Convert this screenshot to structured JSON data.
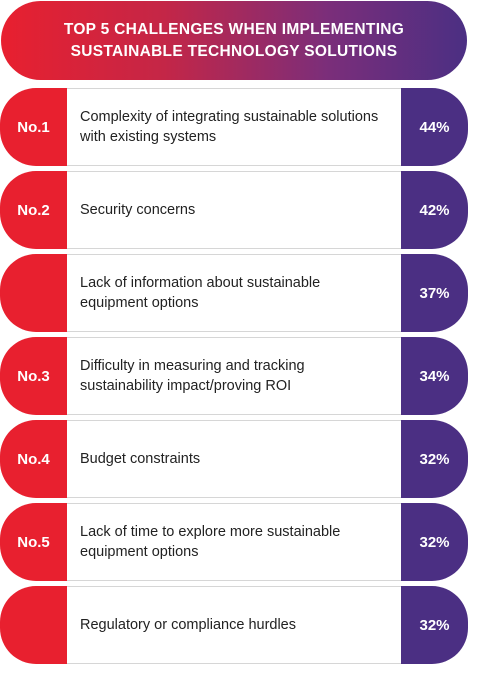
{
  "header": {
    "title": "TOP 5 CHALLENGES WHEN IMPLEMENTING SUSTAINABLE TECHNOLOGY SOLUTIONS"
  },
  "colors": {
    "red": "#e8202f",
    "purple": "#4b2f83",
    "row_text": "#222222"
  },
  "chart_data": {
    "type": "table",
    "title": "TOP 5 CHALLENGES WHEN IMPLEMENTING SUSTAINABLE TECHNOLOGY SOLUTIONS",
    "rows": [
      {
        "rank": "No.1",
        "label": "Complexity of integrating sustainable solutions with existing systems",
        "value": 44,
        "display": "44%"
      },
      {
        "rank": "No.2",
        "label": "Security concerns",
        "value": 42,
        "display": "42%"
      },
      {
        "rank": "",
        "label": "Lack of information about sustainable equipment options",
        "value": 37,
        "display": "37%"
      },
      {
        "rank": "No.3",
        "label": "Difficulty in measuring and tracking sustainability impact/proving ROI",
        "value": 34,
        "display": "34%"
      },
      {
        "rank": "No.4",
        "label": "Budget constraints",
        "value": 32,
        "display": "32%"
      },
      {
        "rank": "No.5",
        "label": "Lack of time to explore more sustainable equipment options",
        "value": 32,
        "display": "32%"
      },
      {
        "rank": "",
        "label": "Regulatory or compliance hurdles",
        "value": 32,
        "display": "32%"
      }
    ]
  }
}
